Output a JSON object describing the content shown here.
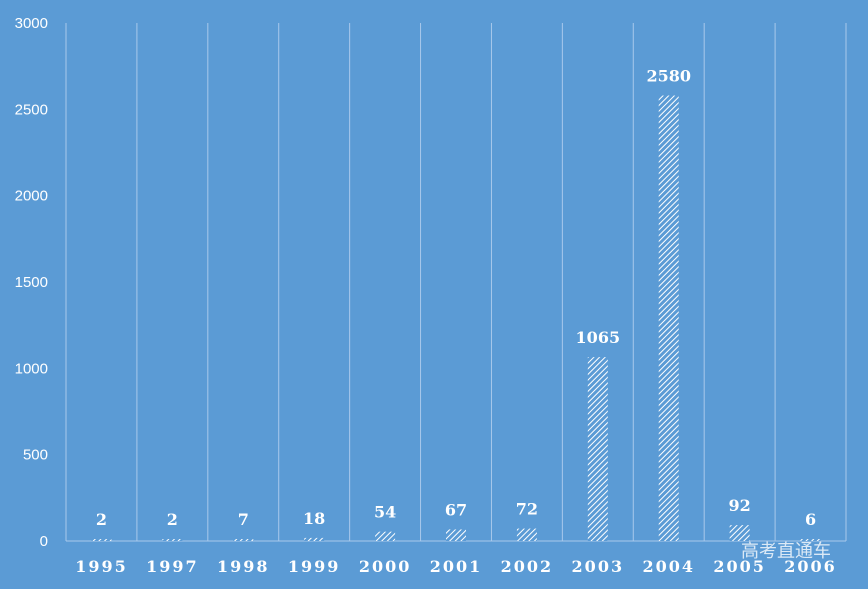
{
  "chart_data": {
    "type": "bar",
    "title": "",
    "xlabel": "",
    "ylabel": "",
    "categories": [
      "1995",
      "1997",
      "1998",
      "1999",
      "2000",
      "2001",
      "2002",
      "2003",
      "2004",
      "2005",
      "2006"
    ],
    "values": [
      2,
      2,
      7,
      18,
      54,
      67,
      72,
      1065,
      2580,
      92,
      6
    ],
    "ylim": [
      0,
      3000
    ],
    "yticks": [
      "0",
      "500",
      "1000",
      "1500",
      "2000",
      "2500",
      "3000"
    ],
    "data_labels": [
      "2",
      "2",
      "7",
      "18",
      "54",
      "67",
      "72",
      "1065",
      "2580",
      "92",
      "6"
    ],
    "grid": "vertical category separators",
    "legend": "none",
    "bar_fill": "white diagonal hatch",
    "colors": {
      "background": "#5b9bd5",
      "bar_hatch": "#ffffff",
      "gridline": "#a9c9ec",
      "text": "#ffffff"
    }
  },
  "watermark": "高考直通车"
}
